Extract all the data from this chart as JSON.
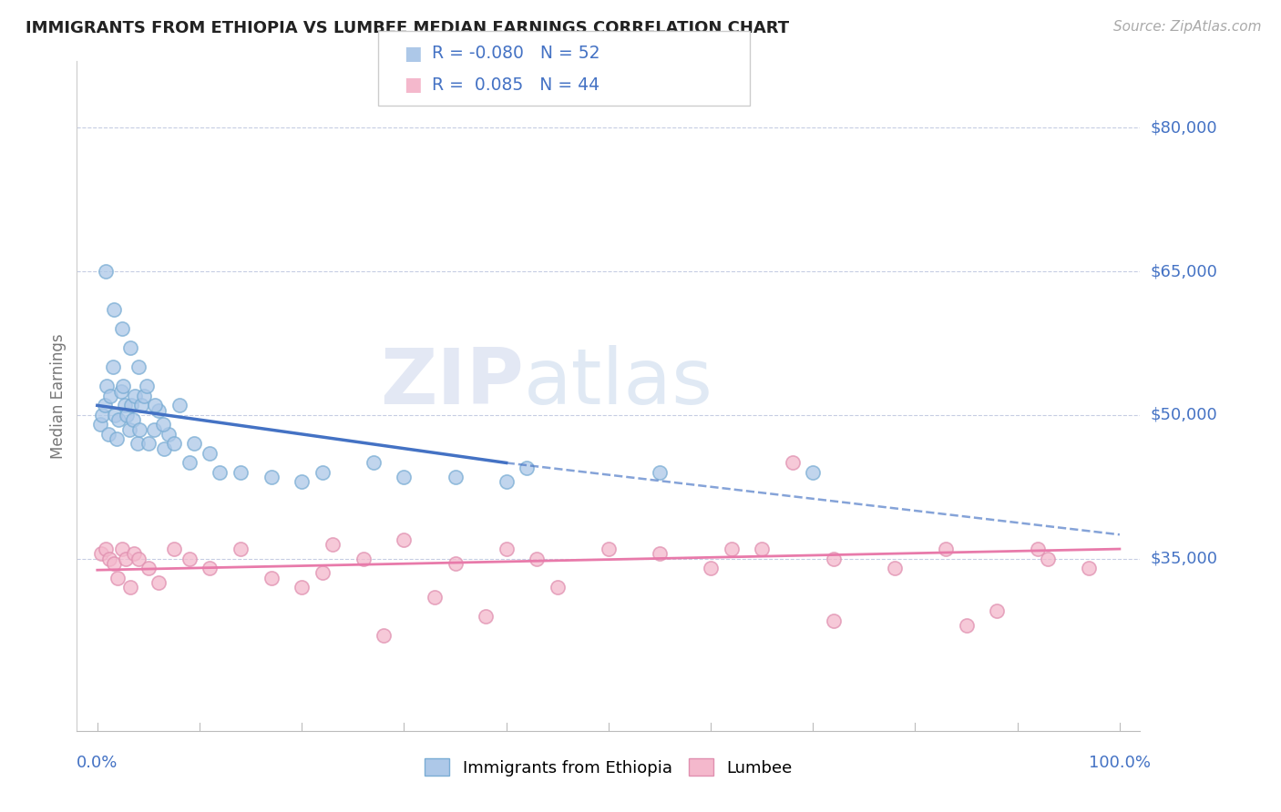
{
  "title": "IMMIGRANTS FROM ETHIOPIA VS LUMBEE MEDIAN EARNINGS CORRELATION CHART",
  "source": "Source: ZipAtlas.com",
  "ylabel": "Median Earnings",
  "ytick_labels": [
    "$80,000",
    "$65,000",
    "$50,000",
    "$35,000"
  ],
  "ytick_values": [
    80000,
    65000,
    50000,
    35000
  ],
  "ylim": [
    17000,
    87000
  ],
  "xlim": [
    -2.0,
    102.0
  ],
  "legend_ethiopia_R": "-0.080",
  "legend_ethiopia_N": "52",
  "legend_lumbee_R": "0.085",
  "legend_lumbee_N": "44",
  "color_ethiopia_fill": "#adc8e8",
  "color_ethiopia_edge": "#7aadd4",
  "color_ethiopia_line": "#4472c4",
  "color_lumbee_fill": "#f4b8cc",
  "color_lumbee_edge": "#e090b0",
  "color_lumbee_line": "#e87aaa",
  "color_ytick": "#4472c4",
  "color_grid": "#c0c8e0",
  "watermark_zip": "ZIP",
  "watermark_atlas": "atlas",
  "ethiopia_x": [
    0.3,
    0.5,
    0.7,
    0.9,
    1.1,
    1.3,
    1.5,
    1.7,
    1.9,
    2.1,
    2.3,
    2.5,
    2.7,
    2.9,
    3.1,
    3.3,
    3.5,
    3.7,
    3.9,
    4.1,
    4.3,
    4.6,
    5.0,
    5.5,
    6.0,
    6.5,
    7.0,
    8.0,
    9.5,
    11.0,
    14.0,
    17.0,
    22.0,
    27.0,
    35.0,
    42.0,
    0.8,
    1.6,
    2.4,
    3.2,
    4.0,
    4.8,
    5.6,
    6.4,
    7.5,
    9.0,
    12.0,
    20.0,
    30.0,
    40.0,
    55.0,
    70.0
  ],
  "ethiopia_y": [
    49000,
    50000,
    51000,
    53000,
    48000,
    52000,
    55000,
    50000,
    47500,
    49500,
    52500,
    53000,
    51000,
    50000,
    48500,
    51000,
    49500,
    52000,
    47000,
    48500,
    51000,
    52000,
    47000,
    48500,
    50500,
    46500,
    48000,
    51000,
    47000,
    46000,
    44000,
    43500,
    44000,
    45000,
    43500,
    44500,
    65000,
    61000,
    59000,
    57000,
    55000,
    53000,
    51000,
    49000,
    47000,
    45000,
    44000,
    43000,
    43500,
    43000,
    44000,
    44000
  ],
  "lumbee_x": [
    0.4,
    0.8,
    1.2,
    1.6,
    2.0,
    2.4,
    2.8,
    3.2,
    3.6,
    4.0,
    5.0,
    6.0,
    7.5,
    9.0,
    11.0,
    14.0,
    17.0,
    20.0,
    23.0,
    26.0,
    30.0,
    35.0,
    40.0,
    45.0,
    50.0,
    55.0,
    60.0,
    65.0,
    68.0,
    72.0,
    78.0,
    83.0,
    88.0,
    93.0,
    97.0,
    22.0,
    28.0,
    33.0,
    38.0,
    43.0,
    62.0,
    72.0,
    85.0,
    92.0
  ],
  "lumbee_y": [
    35500,
    36000,
    35000,
    34500,
    33000,
    36000,
    35000,
    32000,
    35500,
    35000,
    34000,
    32500,
    36000,
    35000,
    34000,
    36000,
    33000,
    32000,
    36500,
    35000,
    37000,
    34500,
    36000,
    32000,
    36000,
    35500,
    34000,
    36000,
    45000,
    35000,
    34000,
    36000,
    29500,
    35000,
    34000,
    33500,
    27000,
    31000,
    29000,
    35000,
    36000,
    28500,
    28000,
    36000
  ],
  "eth_solid_x0": 0,
  "eth_solid_x1": 40,
  "eth_solid_y0": 51000,
  "eth_solid_y1": 45000,
  "eth_dash_x0": 40,
  "eth_dash_x1": 100,
  "eth_dash_y0": 45000,
  "eth_dash_y1": 37500,
  "lum_line_x0": 0,
  "lum_line_x1": 100,
  "lum_line_y0": 33800,
  "lum_line_y1": 36000
}
